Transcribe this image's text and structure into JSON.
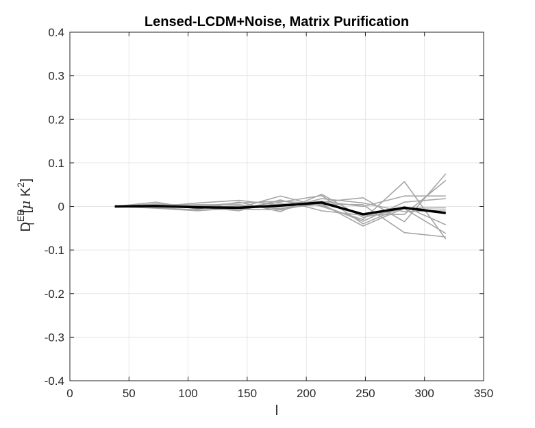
{
  "chart_data": {
    "type": "line",
    "title": "Lensed-LCDM+Noise, Matrix Purification",
    "xlabel": "l",
    "ylabel_base": "D",
    "ylabel_sup": "EB",
    "ylabel_sub": "l",
    "ylabel_unit_open": "[",
    "ylabel_unit_mu": "μ",
    "ylabel_unit_k": " K",
    "ylabel_unit_sup": "2",
    "ylabel_unit_close": "]",
    "xlim": [
      0,
      350
    ],
    "ylim": [
      -0.4,
      0.4
    ],
    "xticks": [
      0,
      50,
      100,
      150,
      200,
      250,
      300,
      350
    ],
    "yticks": [
      -0.4,
      -0.3,
      -0.2,
      -0.1,
      0,
      0.1,
      0.2,
      0.3,
      0.4
    ],
    "xtick_labels": [
      "0",
      "50",
      "100",
      "150",
      "200",
      "250",
      "300",
      "350"
    ],
    "ytick_labels": [
      "-0.4",
      "-0.3",
      "-0.2",
      "-0.1",
      "0",
      "0.1",
      "0.2",
      "0.3",
      "0.4"
    ],
    "grid": true,
    "x": [
      38,
      73,
      108,
      143,
      178,
      213,
      248,
      283,
      318
    ],
    "series": [
      {
        "values": [
          0.0,
          0.003,
          -0.002,
          0.001,
          -0.004,
          0.005,
          0.004,
          -0.06,
          -0.07
        ]
      },
      {
        "values": [
          0.0,
          -0.002,
          0.004,
          -0.003,
          0.024,
          0.0,
          -0.03,
          0.057,
          -0.075
        ]
      },
      {
        "values": [
          0.0,
          0.005,
          0.003,
          -0.006,
          -0.008,
          0.01,
          0.02,
          -0.035,
          0.075
        ]
      },
      {
        "values": [
          0.0,
          0.01,
          -0.006,
          0.01,
          -0.012,
          0.028,
          -0.025,
          -0.005,
          -0.062
        ]
      },
      {
        "values": [
          0.0,
          0.0,
          0.008,
          0.014,
          0.003,
          0.012,
          0.0,
          0.024,
          0.024
        ]
      },
      {
        "values": [
          0.0,
          -0.004,
          -0.01,
          -0.003,
          0.01,
          0.025,
          -0.04,
          0.0,
          -0.042
        ]
      },
      {
        "values": [
          0.0,
          0.006,
          -0.001,
          -0.01,
          0.015,
          -0.01,
          -0.02,
          -0.018,
          0.06
        ]
      },
      {
        "values": [
          0.0,
          0.002,
          0.004,
          0.004,
          -0.006,
          0.018,
          0.008,
          -0.012,
          -0.008
        ]
      },
      {
        "values": [
          0.0,
          -0.003,
          -0.008,
          -0.006,
          0.006,
          0.003,
          -0.034,
          0.01,
          0.018
        ]
      },
      {
        "values": [
          0.0,
          0.004,
          0.001,
          0.008,
          0.012,
          0.006,
          -0.045,
          -0.004,
          -0.003
        ]
      }
    ],
    "mean": {
      "values": [
        0.0,
        0.001,
        -0.002,
        -0.003,
        0.002,
        0.009,
        -0.018,
        -0.003,
        -0.015
      ]
    },
    "colors": {
      "series": "#a6a6a6",
      "mean": "#000000",
      "grid": "#e6e6e6",
      "axis": "#262626"
    }
  }
}
